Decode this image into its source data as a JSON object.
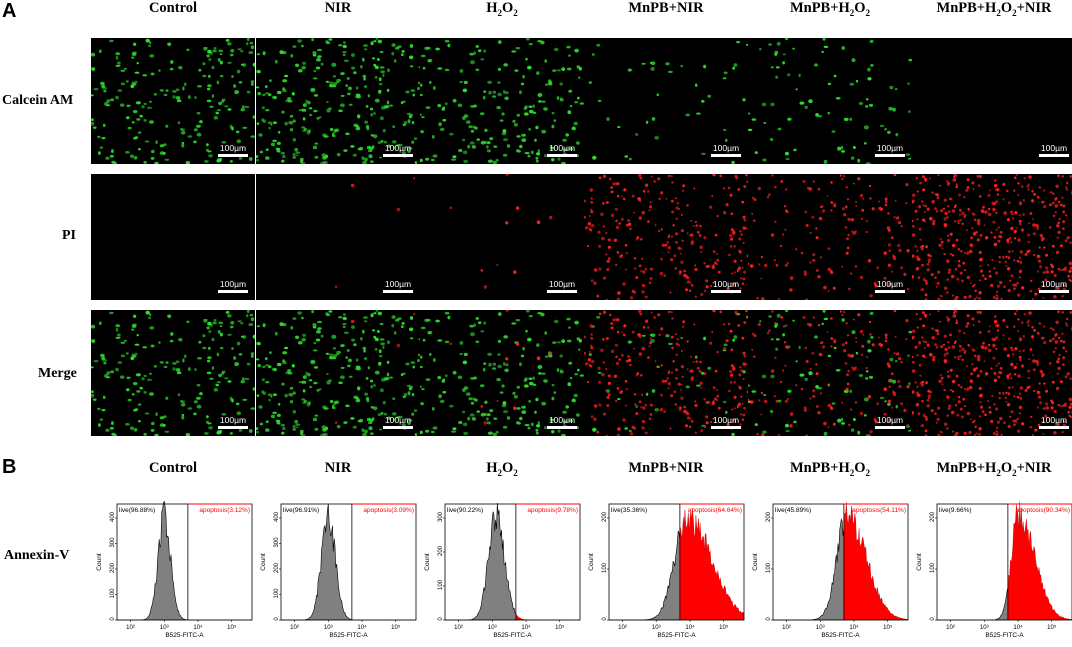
{
  "panel_a": {
    "letter": "A",
    "columns": [
      {
        "base": "Control",
        "sub": "",
        "tail": ""
      },
      {
        "base": "NIR",
        "sub": "",
        "tail": ""
      },
      {
        "base": "H",
        "sub": "2",
        "tail": "O",
        "sub2": "2",
        "tail2": ""
      },
      {
        "base": "MnPB+NIR",
        "sub": "",
        "tail": ""
      },
      {
        "base": "MnPB+H",
        "sub": "2",
        "tail": "O",
        "sub2": "2",
        "tail2": ""
      },
      {
        "base": "MnPB+H",
        "sub": "2",
        "tail": "O",
        "sub2": "2",
        "tail2": "+NIR"
      }
    ],
    "rows": [
      "Calcein AM",
      "PI",
      "Merge"
    ],
    "scale_bar": "100µm",
    "live_density": [
      200,
      260,
      190,
      40,
      80,
      0
    ],
    "dead_density": [
      0,
      4,
      10,
      260,
      150,
      420
    ],
    "colors": {
      "live": "#2fe02f",
      "dead": "#ff2020",
      "background": "#000000"
    }
  },
  "panel_b": {
    "letter": "B",
    "row_label": "Annexin-V",
    "x_axis_label": "B525-FITC-A",
    "y_axis_label": "Count",
    "x_ticks": [
      "10²",
      "10³",
      "10⁴",
      "10⁵"
    ],
    "plots": [
      {
        "live": "live(96.88%)",
        "apoptosis": "apoptosis(3.12%)",
        "yticks": [
          "400",
          "300",
          "200",
          "100",
          "0"
        ],
        "peak_log": 3.0,
        "width_log": 0.18,
        "red_fraction": 0.03
      },
      {
        "live": "live(96.91%)",
        "apoptosis": "apoptosis(3.09%)",
        "yticks": [
          "400",
          "300",
          "200",
          "100",
          "0"
        ],
        "peak_log": 3.0,
        "width_log": 0.2,
        "red_fraction": 0.03
      },
      {
        "live": "live(90.22%)",
        "apoptosis": "apoptosis(9.78%)",
        "yticks": [
          "300",
          "200",
          "100",
          "0"
        ],
        "peak_log": 3.1,
        "width_log": 0.22,
        "red_fraction": 0.1
      },
      {
        "live": "live(35.36%)",
        "apoptosis": "apoptosis(64.64%)",
        "yticks": [
          "200",
          "100",
          "0"
        ],
        "peak_log": 3.9,
        "width_log": 0.35,
        "red_fraction": 0.65
      },
      {
        "live": "live(45.89%)",
        "apoptosis": "apoptosis(54.11%)",
        "yticks": [
          "200",
          "100",
          "0"
        ],
        "peak_log": 3.8,
        "width_log": 0.3,
        "red_fraction": 0.54
      },
      {
        "live": "live(9.66%)",
        "apoptosis": "apoptosis(90.34%)",
        "yticks": [
          "200",
          "100",
          "0"
        ],
        "peak_log": 4.0,
        "width_log": 0.2,
        "red_fraction": 0.9
      }
    ],
    "colors": {
      "live": "#808080",
      "apoptosis": "#ff0000"
    }
  }
}
